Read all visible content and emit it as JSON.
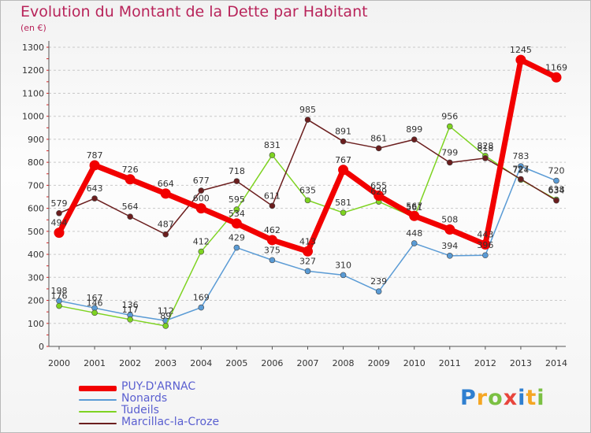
{
  "title": "Evolution du Montant de la Dette par Habitant",
  "unit_label": "(en €)",
  "logo_text": "Proxiti",
  "chart_data": {
    "type": "line",
    "title": "Evolution du Montant de la Dette par Habitant",
    "subtitle": "(en €)",
    "xlabel": "",
    "ylabel": "",
    "x": [
      "2000",
      "2001",
      "2002",
      "2003",
      "2004",
      "2005",
      "2006",
      "2007",
      "2008",
      "2009",
      "2010",
      "2011",
      "2012",
      "2013",
      "2014"
    ],
    "yticks": [
      "0",
      "100",
      "200",
      "300",
      "400",
      "500",
      "600",
      "700",
      "800",
      "900",
      "1000",
      "1100",
      "1200",
      "1300"
    ],
    "ylim": [
      0,
      1300
    ],
    "grid": "horizontal dashed",
    "legend_position": "bottom-left",
    "series": [
      {
        "name": "PUY-D'ARNAC",
        "color": "#f20000",
        "values": [
          494,
          787,
          726,
          664,
          600,
          534,
          462,
          413,
          767,
          655,
          567,
          508,
          443,
          1245,
          1169
        ]
      },
      {
        "name": "Nonards",
        "color": "#5a9bd5",
        "values": [
          198,
          167,
          136,
          112,
          169,
          429,
          375,
          327,
          310,
          239,
          448,
          394,
          396,
          783,
          720
        ]
      },
      {
        "name": "Tudeils",
        "color": "#7ed321",
        "values": [
          176,
          146,
          117,
          89,
          412,
          595,
          831,
          635,
          581,
          629,
          561,
          956,
          828,
          724,
          638
        ]
      },
      {
        "name": "Marcillac-la-Croze",
        "color": "#6b1e1e",
        "values": [
          579,
          643,
          564,
          487,
          677,
          718,
          611,
          985,
          891,
          861,
          899,
          799,
          818,
          727,
          634
        ]
      }
    ]
  }
}
